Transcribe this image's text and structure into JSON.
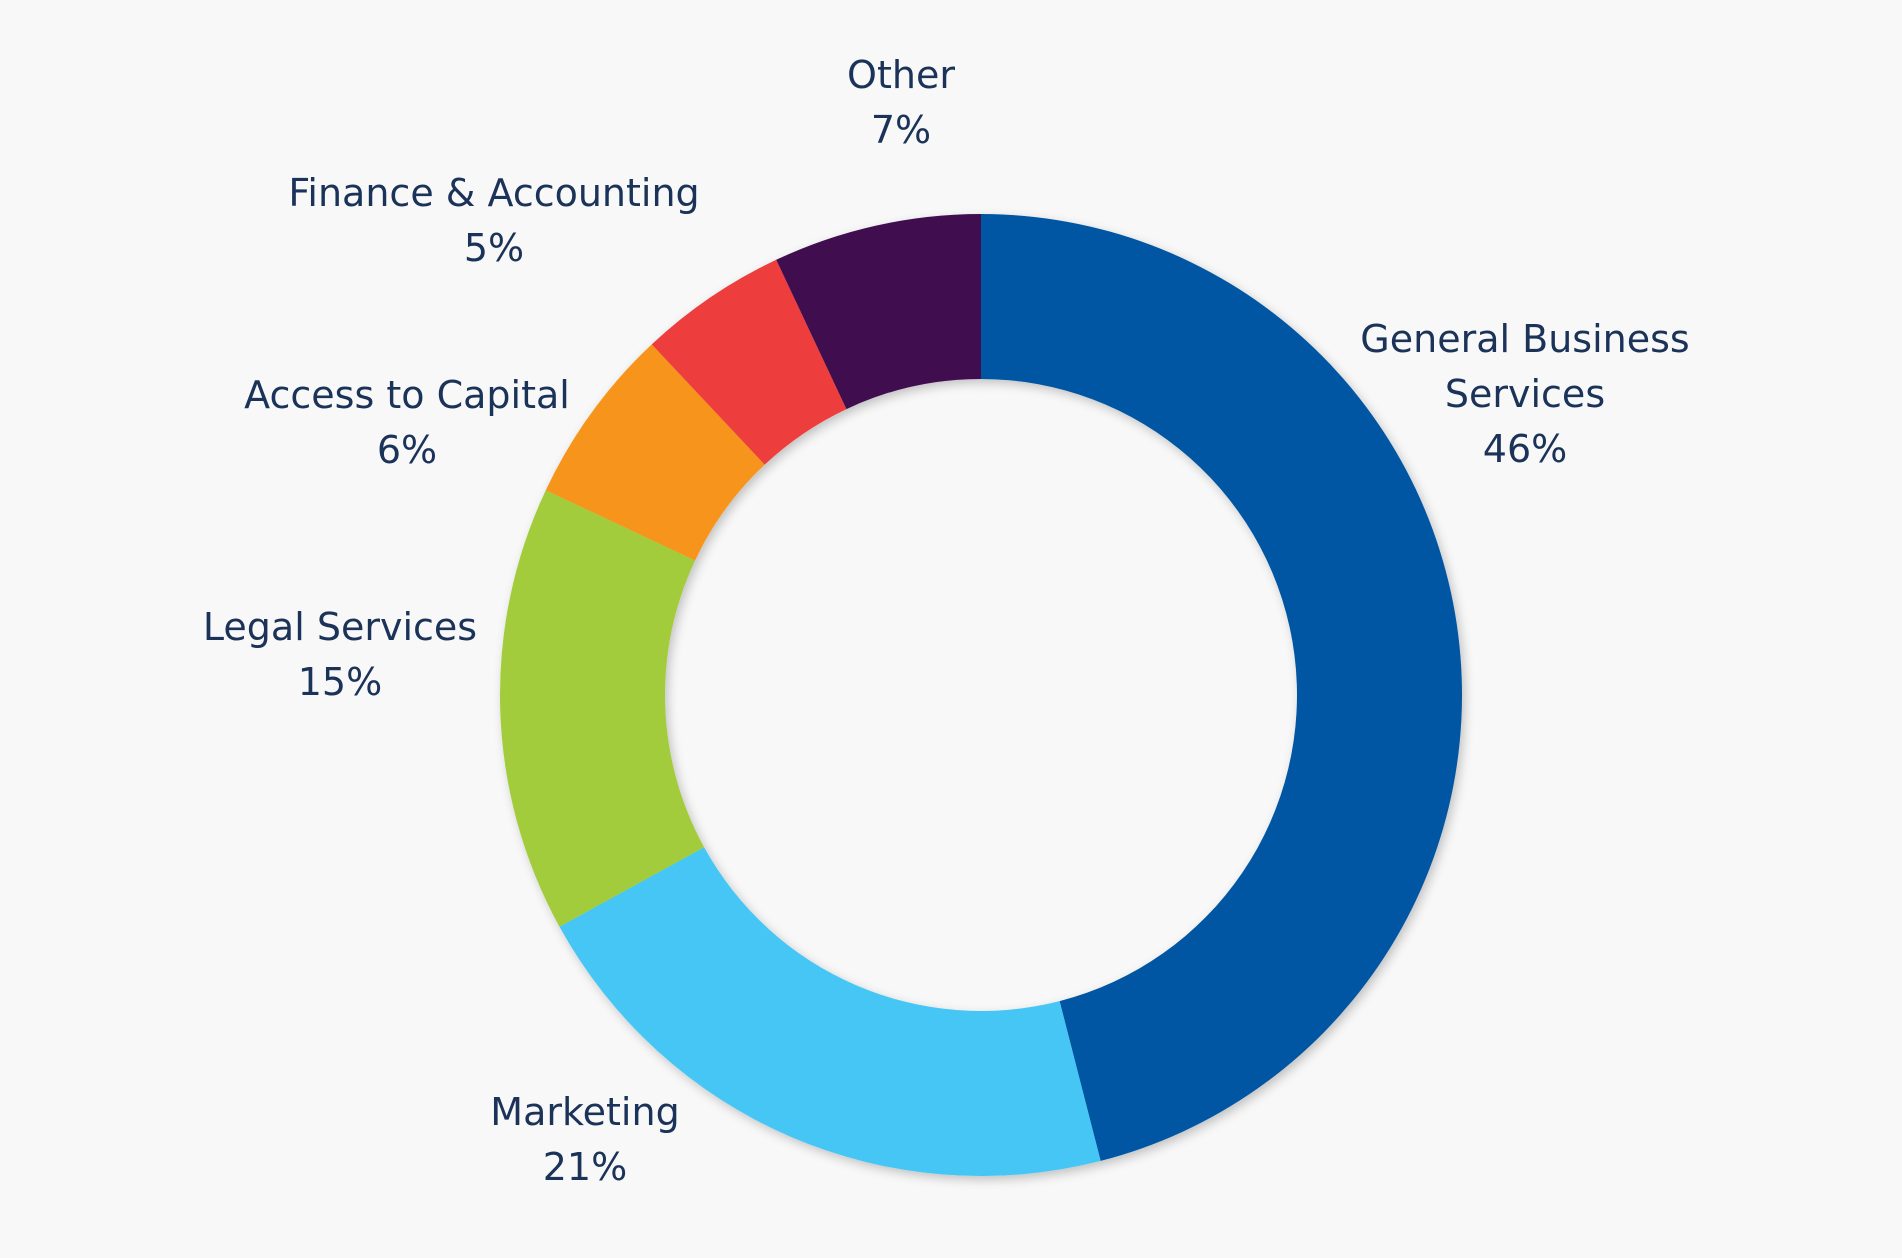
{
  "chart_data": {
    "type": "pie",
    "donut": true,
    "categories": [
      "General Business Services",
      "Marketing",
      "Legal Services",
      "Access to Capital",
      "Finance & Accounting",
      "Other"
    ],
    "values": [
      46,
      21,
      15,
      6,
      5,
      7
    ],
    "value_labels": [
      "46%",
      "21%",
      "15%",
      "6%",
      "5%",
      "7%"
    ],
    "colors": [
      "#0057a3",
      "#45c6f5",
      "#a2cc3a",
      "#f7941d",
      "#ee3e3e",
      "#3f1150"
    ],
    "label_lines": [
      [
        "General Business",
        "Services"
      ],
      [
        "Marketing"
      ],
      [
        "Legal Services"
      ],
      [
        "Access to Capital"
      ],
      [
        "Finance & Accounting"
      ],
      [
        "Other"
      ]
    ],
    "start": "top",
    "direction": "clockwise",
    "title": "",
    "legend": "none"
  }
}
